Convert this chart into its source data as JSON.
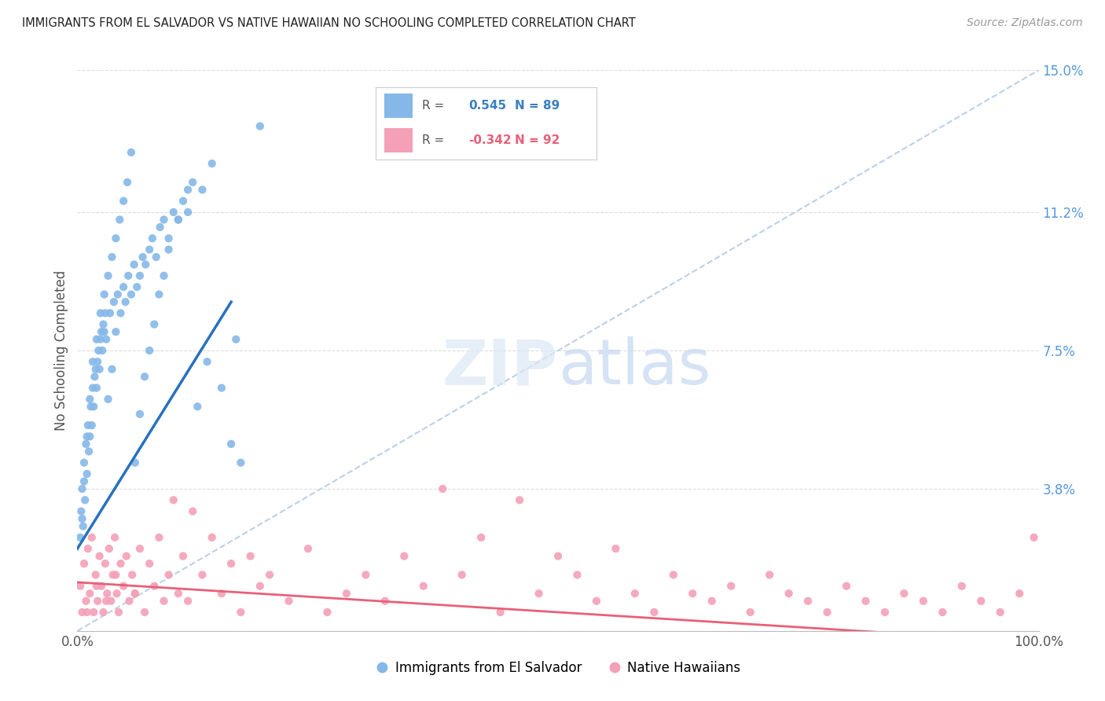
{
  "title": "IMMIGRANTS FROM EL SALVADOR VS NATIVE HAWAIIAN NO SCHOOLING COMPLETED CORRELATION CHART",
  "source": "Source: ZipAtlas.com",
  "ylabel": "No Schooling Completed",
  "xlim": [
    0,
    100
  ],
  "ylim": [
    0,
    15
  ],
  "ytick_vals": [
    3.8,
    7.5,
    11.2,
    15.0
  ],
  "ytick_labels": [
    "3.8%",
    "7.5%",
    "11.2%",
    "15.0%"
  ],
  "xtick_vals": [
    0,
    100
  ],
  "xtick_labels": [
    "0.0%",
    "100.0%"
  ],
  "legend_labels": [
    "Immigrants from El Salvador",
    "Native Hawaiians"
  ],
  "blue_color": "#85b8e8",
  "pink_color": "#f4a0b8",
  "blue_line_color": "#2970c0",
  "pink_line_color": "#e8607a",
  "diagonal_color": "#bdd0e8",
  "r_blue": 0.545,
  "n_blue": 89,
  "r_pink": -0.342,
  "n_pink": 92,
  "blue_line_x0": 0.0,
  "blue_line_y0": 2.2,
  "blue_line_x1": 16.0,
  "blue_line_y1": 8.8,
  "pink_line_x0": 0.0,
  "pink_line_y0": 1.3,
  "pink_line_x1": 100.0,
  "pink_line_y1": -0.3,
  "blue_scatter_x": [
    0.3,
    0.4,
    0.5,
    0.6,
    0.7,
    0.8,
    0.9,
    1.0,
    1.1,
    1.2,
    1.3,
    1.4,
    1.5,
    1.6,
    1.7,
    1.8,
    1.9,
    2.0,
    2.1,
    2.2,
    2.3,
    2.4,
    2.5,
    2.6,
    2.7,
    2.8,
    2.9,
    3.0,
    3.2,
    3.4,
    3.6,
    3.8,
    4.0,
    4.2,
    4.5,
    4.8,
    5.0,
    5.3,
    5.6,
    5.9,
    6.2,
    6.5,
    6.8,
    7.1,
    7.5,
    7.8,
    8.2,
    8.6,
    9.0,
    9.5,
    10.0,
    10.5,
    11.0,
    11.5,
    12.0,
    13.0,
    14.0,
    15.0,
    16.0,
    17.0,
    0.5,
    0.7,
    1.0,
    1.3,
    1.6,
    2.0,
    2.4,
    2.8,
    3.2,
    3.6,
    4.0,
    4.4,
    4.8,
    5.2,
    5.6,
    6.0,
    6.5,
    7.0,
    7.5,
    8.0,
    8.5,
    9.0,
    9.5,
    10.5,
    11.5,
    12.5,
    13.5,
    16.5,
    19.0
  ],
  "blue_scatter_y": [
    2.5,
    3.2,
    3.8,
    2.8,
    4.5,
    3.5,
    5.0,
    4.2,
    5.5,
    4.8,
    5.2,
    6.0,
    5.5,
    6.5,
    6.0,
    6.8,
    7.0,
    6.5,
    7.2,
    7.5,
    7.0,
    7.8,
    8.0,
    7.5,
    8.2,
    8.0,
    8.5,
    7.8,
    6.2,
    8.5,
    7.0,
    8.8,
    8.0,
    9.0,
    8.5,
    9.2,
    8.8,
    9.5,
    9.0,
    9.8,
    9.2,
    9.5,
    10.0,
    9.8,
    10.2,
    10.5,
    10.0,
    10.8,
    11.0,
    10.5,
    11.2,
    11.0,
    11.5,
    11.2,
    12.0,
    11.8,
    12.5,
    6.5,
    5.0,
    4.5,
    3.0,
    4.0,
    5.2,
    6.2,
    7.2,
    7.8,
    8.5,
    9.0,
    9.5,
    10.0,
    10.5,
    11.0,
    11.5,
    12.0,
    12.8,
    4.5,
    5.8,
    6.8,
    7.5,
    8.2,
    9.0,
    9.5,
    10.2,
    11.0,
    11.8,
    6.0,
    7.2,
    7.8,
    13.5
  ],
  "pink_scatter_x": [
    0.3,
    0.5,
    0.7,
    0.9,
    1.1,
    1.3,
    1.5,
    1.7,
    1.9,
    2.1,
    2.3,
    2.5,
    2.7,
    2.9,
    3.1,
    3.3,
    3.5,
    3.7,
    3.9,
    4.1,
    4.3,
    4.5,
    4.8,
    5.1,
    5.4,
    5.7,
    6.0,
    6.5,
    7.0,
    7.5,
    8.0,
    8.5,
    9.0,
    9.5,
    10.0,
    10.5,
    11.0,
    11.5,
    12.0,
    13.0,
    14.0,
    15.0,
    16.0,
    17.0,
    18.0,
    19.0,
    20.0,
    22.0,
    24.0,
    26.0,
    28.0,
    30.0,
    32.0,
    34.0,
    36.0,
    38.0,
    40.0,
    42.0,
    44.0,
    46.0,
    48.0,
    50.0,
    52.0,
    54.0,
    56.0,
    58.0,
    60.0,
    62.0,
    64.0,
    66.0,
    68.0,
    70.0,
    72.0,
    74.0,
    76.0,
    78.0,
    80.0,
    82.0,
    84.0,
    86.0,
    88.0,
    90.0,
    92.0,
    94.0,
    96.0,
    98.0,
    99.5,
    1.0,
    2.0,
    3.0,
    4.0,
    6.0
  ],
  "pink_scatter_y": [
    1.2,
    0.5,
    1.8,
    0.8,
    2.2,
    1.0,
    2.5,
    0.5,
    1.5,
    0.8,
    2.0,
    1.2,
    0.5,
    1.8,
    1.0,
    2.2,
    0.8,
    1.5,
    2.5,
    1.0,
    0.5,
    1.8,
    1.2,
    2.0,
    0.8,
    1.5,
    1.0,
    2.2,
    0.5,
    1.8,
    1.2,
    2.5,
    0.8,
    1.5,
    3.5,
    1.0,
    2.0,
    0.8,
    3.2,
    1.5,
    2.5,
    1.0,
    1.8,
    0.5,
    2.0,
    1.2,
    1.5,
    0.8,
    2.2,
    0.5,
    1.0,
    1.5,
    0.8,
    2.0,
    1.2,
    3.8,
    1.5,
    2.5,
    0.5,
    3.5,
    1.0,
    2.0,
    1.5,
    0.8,
    2.2,
    1.0,
    0.5,
    1.5,
    1.0,
    0.8,
    1.2,
    0.5,
    1.5,
    1.0,
    0.8,
    0.5,
    1.2,
    0.8,
    0.5,
    1.0,
    0.8,
    0.5,
    1.2,
    0.8,
    0.5,
    1.0,
    2.5,
    0.5,
    1.2,
    0.8,
    1.5,
    1.0
  ]
}
